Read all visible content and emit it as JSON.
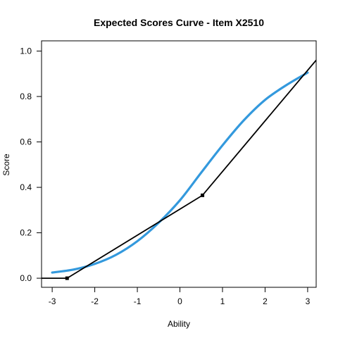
{
  "chart_data": {
    "type": "line",
    "title": "Expected Scores Curve - Item  X2510",
    "xlabel": "Ability",
    "ylabel": "Score",
    "xlim": [
      -3.25,
      3.2
    ],
    "ylim": [
      -0.04,
      1.045
    ],
    "x_ticks": [
      -3,
      -2,
      -1,
      0,
      1,
      2,
      3
    ],
    "x_tick_labels": [
      "-3",
      "-2",
      "-1",
      "0",
      "1",
      "2",
      "3"
    ],
    "y_ticks": [
      0.0,
      0.2,
      0.4,
      0.6,
      0.8,
      1.0
    ],
    "y_tick_labels": [
      "0.0",
      "0.2",
      "0.4",
      "0.6",
      "0.8",
      "1.0"
    ],
    "grid": false,
    "series": [
      {
        "style": "smooth-curve",
        "color": "#3399dd",
        "x": [
          -3.0,
          -2.5,
          -2.0,
          -1.5,
          -1.0,
          -0.5,
          0.0,
          0.5,
          1.0,
          1.5,
          2.0,
          2.5,
          3.0
        ],
        "y": [
          0.025,
          0.038,
          0.063,
          0.103,
          0.163,
          0.244,
          0.343,
          0.465,
          0.585,
          0.695,
          0.785,
          0.85,
          0.905
        ]
      },
      {
        "style": "line-with-points",
        "color": "#000000",
        "x": [
          -3.25,
          -2.65,
          0.53,
          3.2
        ],
        "y": [
          0.0,
          0.0,
          0.365,
          0.96
        ],
        "markers": [
          {
            "x": -2.65,
            "y": 0.0
          },
          {
            "x": 0.53,
            "y": 0.365
          }
        ]
      }
    ]
  }
}
